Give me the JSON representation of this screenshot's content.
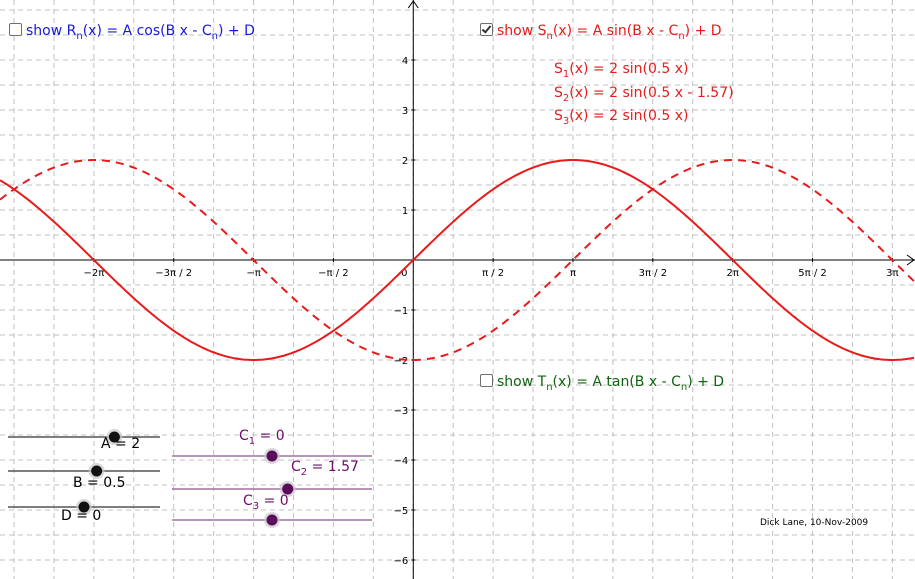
{
  "checkboxes": {
    "r": {
      "checked": false,
      "pre": "show R",
      "sub": "n",
      "mid": "(x) = A cos(B x - C",
      "sub2": "n",
      "post": ") + D",
      "color": "#1a1adb"
    },
    "s": {
      "checked": true,
      "pre": "show S",
      "sub": "n",
      "mid": "(x) = A sin(B x - C",
      "sub2": "n",
      "post": ") + D",
      "color": "#e81b1b"
    },
    "t": {
      "checked": false,
      "pre": "show T",
      "sub": "n",
      "mid": "(x) = A tan(B x - C",
      "sub2": "n",
      "post": ") + D",
      "color": "#126312"
    }
  },
  "formulas": [
    {
      "pre": "S",
      "sub": "1",
      "post": "(x) = 2 sin(0.5 x)"
    },
    {
      "pre": "S",
      "sub": "2",
      "post": "(x) = 2 sin(0.5 x - 1.57)"
    },
    {
      "pre": "S",
      "sub": "3",
      "post": "(x) = 2 sin(0.5 x)"
    }
  ],
  "sliders": {
    "A": {
      "text": "A = 2",
      "value": 2
    },
    "B": {
      "text": "B = 0.5",
      "value": 0.5
    },
    "D": {
      "text": "D = 0",
      "value": 0
    },
    "C1": {
      "pre": "C",
      "sub": "1",
      "post": " = 0",
      "value": 0
    },
    "C2": {
      "pre": "C",
      "sub": "2",
      "post": " = 1.57",
      "value": 1.57
    },
    "C3": {
      "pre": "C",
      "sub": "3",
      "post": " = 0",
      "value": 0
    }
  },
  "credit": "Dick Lane, 10-Nov-2009",
  "chart_data": {
    "type": "line",
    "x_tick_labels": [
      "−2π",
      "−3π / 2",
      "−π",
      "−π / 2",
      "0",
      "π / 2",
      "π",
      "3π / 2",
      "2π",
      "5π / 2",
      "3π"
    ],
    "y_tick_labels": [
      "4",
      "3",
      "2",
      "1",
      "−1",
      "−2",
      "−3",
      "−4",
      "−5",
      "−6"
    ],
    "xlim": [
      -8.13,
      9.87
    ],
    "ylim": [
      -6.38,
      5.2
    ],
    "grid": true,
    "series": [
      {
        "name": "S1",
        "formula": "2 sin(0.5 x)",
        "amplitude": 2,
        "frequency": 0.5,
        "phase": 0,
        "offset": 0,
        "style": "solid",
        "color": "#e81b1b"
      },
      {
        "name": "S2",
        "formula": "2 sin(0.5 x - 1.57)",
        "amplitude": 2,
        "frequency": 0.5,
        "phase": 1.57,
        "offset": 0,
        "style": "dashed",
        "color": "#e81b1b"
      }
    ]
  },
  "colors": {
    "accent_purple": "#6b0f6b",
    "axis": "#000000",
    "grid": "#c0c0c0"
  }
}
